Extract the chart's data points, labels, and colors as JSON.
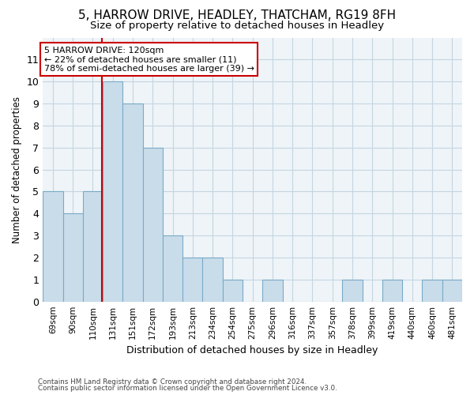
{
  "title1": "5, HARROW DRIVE, HEADLEY, THATCHAM, RG19 8FH",
  "title2": "Size of property relative to detached houses in Headley",
  "xlabel": "Distribution of detached houses by size in Headley",
  "ylabel": "Number of detached properties",
  "footnote1": "Contains HM Land Registry data © Crown copyright and database right 2024.",
  "footnote2": "Contains public sector information licensed under the Open Government Licence v3.0.",
  "bin_labels": [
    "69sqm",
    "90sqm",
    "110sqm",
    "131sqm",
    "151sqm",
    "172sqm",
    "193sqm",
    "213sqm",
    "234sqm",
    "254sqm",
    "275sqm",
    "296sqm",
    "316sqm",
    "337sqm",
    "357sqm",
    "378sqm",
    "399sqm",
    "419sqm",
    "440sqm",
    "460sqm",
    "481sqm"
  ],
  "values": [
    5,
    4,
    5,
    10,
    9,
    7,
    3,
    2,
    2,
    1,
    0,
    1,
    0,
    0,
    0,
    1,
    0,
    1,
    0,
    1,
    1
  ],
  "bar_color": "#c9dcea",
  "bar_edge_color": "#7aaac8",
  "annotation_title": "5 HARROW DRIVE: 120sqm",
  "annotation_line1": "← 22% of detached houses are smaller (11)",
  "annotation_line2": "78% of semi-detached houses are larger (39) →",
  "red_line_bin_index": 2.47,
  "red_line_color": "#cc0000",
  "ylim": [
    0,
    12
  ],
  "yticks": [
    0,
    1,
    2,
    3,
    4,
    5,
    6,
    7,
    8,
    9,
    10,
    11
  ],
  "grid_color": "#c5d5e0",
  "background_color": "#eef4f8",
  "title_fontsize": 11,
  "subtitle_fontsize": 9.5
}
